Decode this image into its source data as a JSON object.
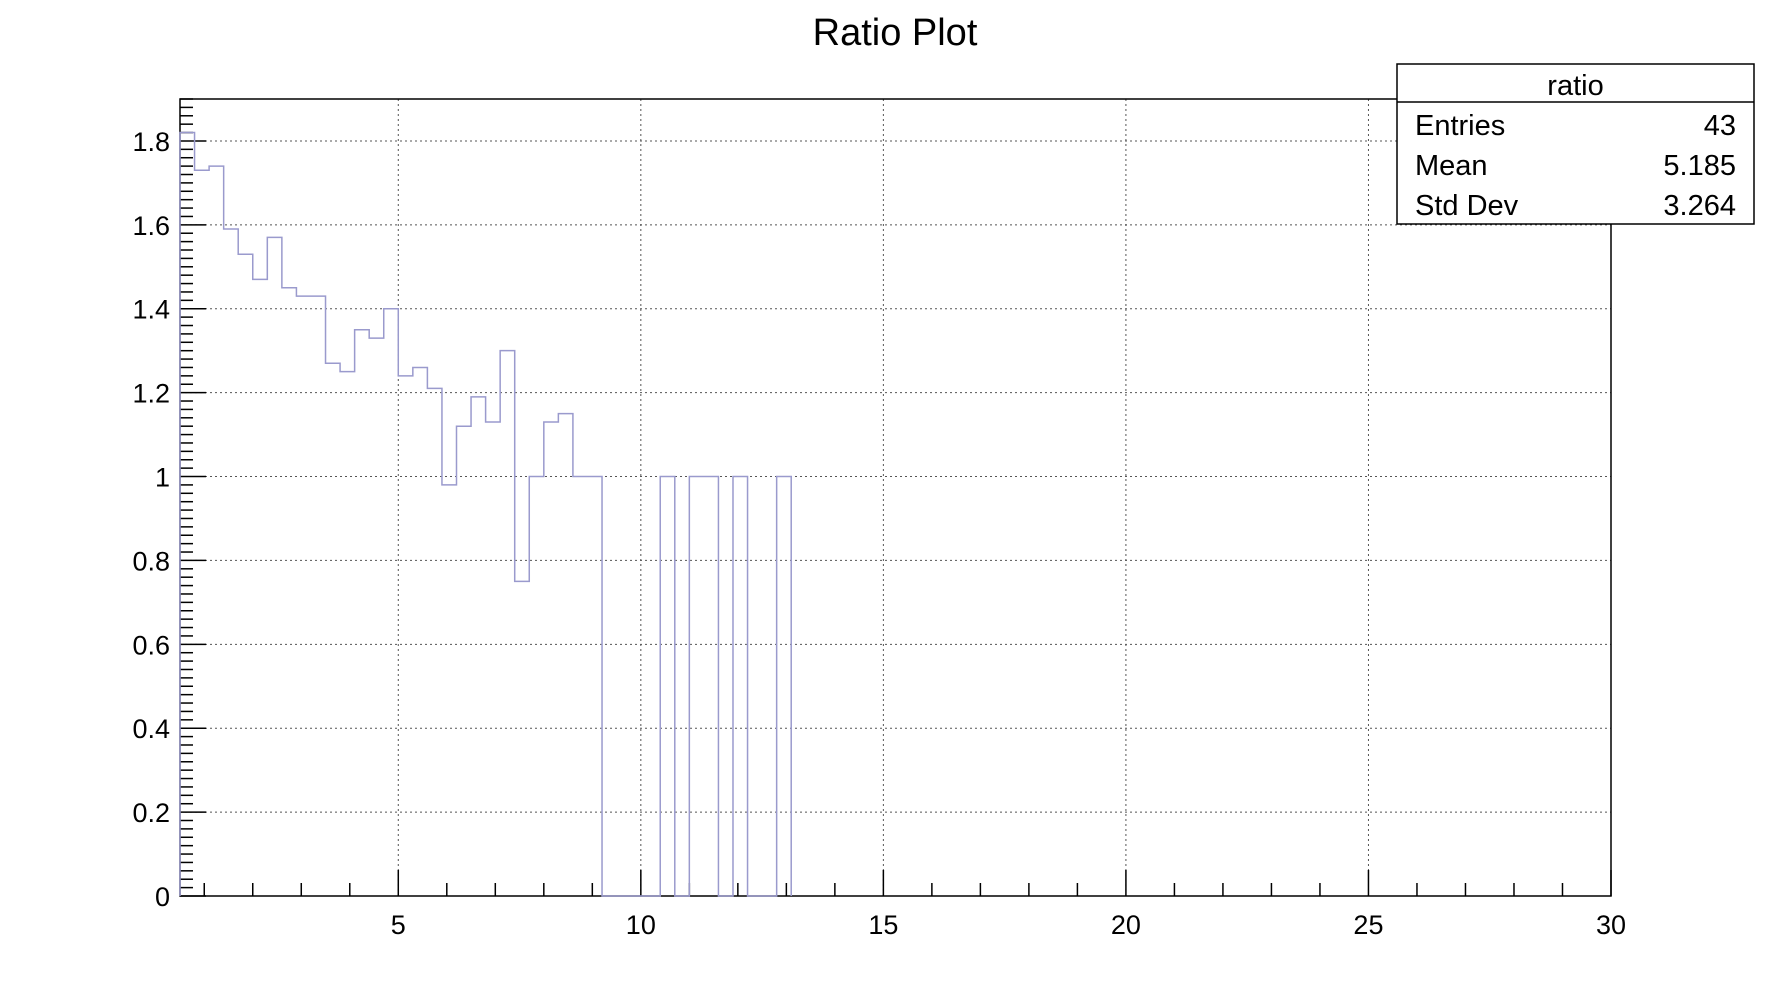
{
  "chart_data": {
    "type": "bar",
    "style": "step-histogram",
    "title": "Ratio Plot",
    "xlabel": "",
    "ylabel": "",
    "xlim": [
      0.5,
      30
    ],
    "ylim": [
      0,
      1.9
    ],
    "grid": true,
    "x_ticks": [
      5,
      10,
      15,
      20,
      25,
      30
    ],
    "y_ticks": [
      0,
      0.2,
      0.4,
      0.6,
      0.8,
      1,
      1.2,
      1.4,
      1.6,
      1.8
    ],
    "x_tick_labels": [
      "5",
      "10",
      "15",
      "20",
      "25",
      "30"
    ],
    "y_tick_labels": [
      "0",
      "0.2",
      "0.4",
      "0.6",
      "0.8",
      "1",
      "1.2",
      "1.4",
      "1.6",
      "1.8"
    ],
    "bin_width": 0.3,
    "bin_start": 0.5,
    "values": [
      1.82,
      1.73,
      1.74,
      1.59,
      1.53,
      1.47,
      1.57,
      1.45,
      1.43,
      1.43,
      1.27,
      1.25,
      1.35,
      1.33,
      1.4,
      1.24,
      1.26,
      1.21,
      0.98,
      1.12,
      1.19,
      1.13,
      1.3,
      0.75,
      1.0,
      1.13,
      1.15,
      1.0,
      1.0,
      0,
      0,
      0,
      0,
      1.0,
      0,
      1.0,
      1.0,
      0,
      1.0,
      0,
      0,
      1.0
    ],
    "series_color": "#9a9acd",
    "stats_box": {
      "name": "ratio",
      "rows": [
        {
          "label": "Entries",
          "value": "43"
        },
        {
          "label": "Mean",
          "value": "5.185"
        },
        {
          "label": "Std Dev",
          "value": "3.264"
        }
      ]
    }
  }
}
